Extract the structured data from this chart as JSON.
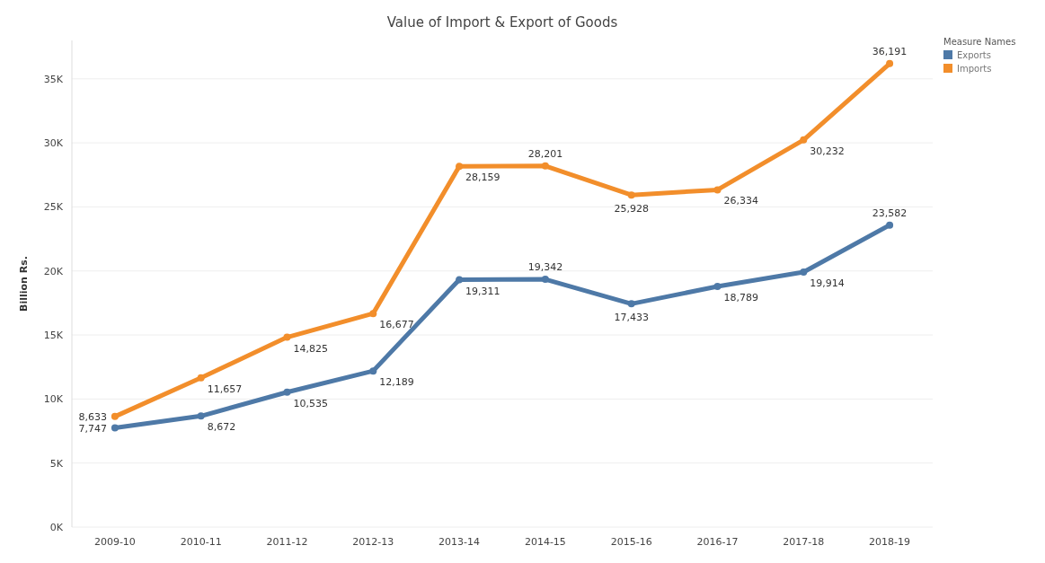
{
  "chart_data": {
    "type": "line",
    "title": "Value of Import & Export of Goods",
    "ylabel": "Billion Rs.",
    "legend_title": "Measure Names",
    "categories": [
      "2009-10",
      "2010-11",
      "2011-12",
      "2012-13",
      "2013-14",
      "2014-15",
      "2015-16",
      "2016-17",
      "2017-18",
      "2018-19"
    ],
    "series": [
      {
        "name": "Exports",
        "color": "#4e79a7",
        "values": [
          7747,
          8672,
          10535,
          12189,
          19311,
          19342,
          17433,
          18789,
          19914,
          23582
        ],
        "value_labels": [
          "7,747",
          "8,672",
          "10,535",
          "12,189",
          "19,311",
          "19,342",
          "17,433",
          "18,789",
          "19,914",
          "23,582"
        ]
      },
      {
        "name": "Imports",
        "color": "#f28e2b",
        "values": [
          8633,
          11657,
          14825,
          16677,
          28159,
          28201,
          25928,
          26334,
          30232,
          36191
        ],
        "value_labels": [
          "8,633",
          "11,657",
          "14,825",
          "16,677",
          "28,159",
          "28,201",
          "25,928",
          "26,334",
          "30,232",
          "36,191"
        ]
      }
    ],
    "ylim": [
      0,
      38000
    ],
    "yticks": [
      {
        "value": 0,
        "label": "0K"
      },
      {
        "value": 5000,
        "label": "5K"
      },
      {
        "value": 10000,
        "label": "10K"
      },
      {
        "value": 15000,
        "label": "15K"
      },
      {
        "value": 20000,
        "label": "20K"
      },
      {
        "value": 25000,
        "label": "25K"
      },
      {
        "value": 30000,
        "label": "30K"
      },
      {
        "value": 35000,
        "label": "35K"
      }
    ],
    "grid": "y",
    "legend": "top right",
    "marker": "circle",
    "line_style": "solid"
  }
}
